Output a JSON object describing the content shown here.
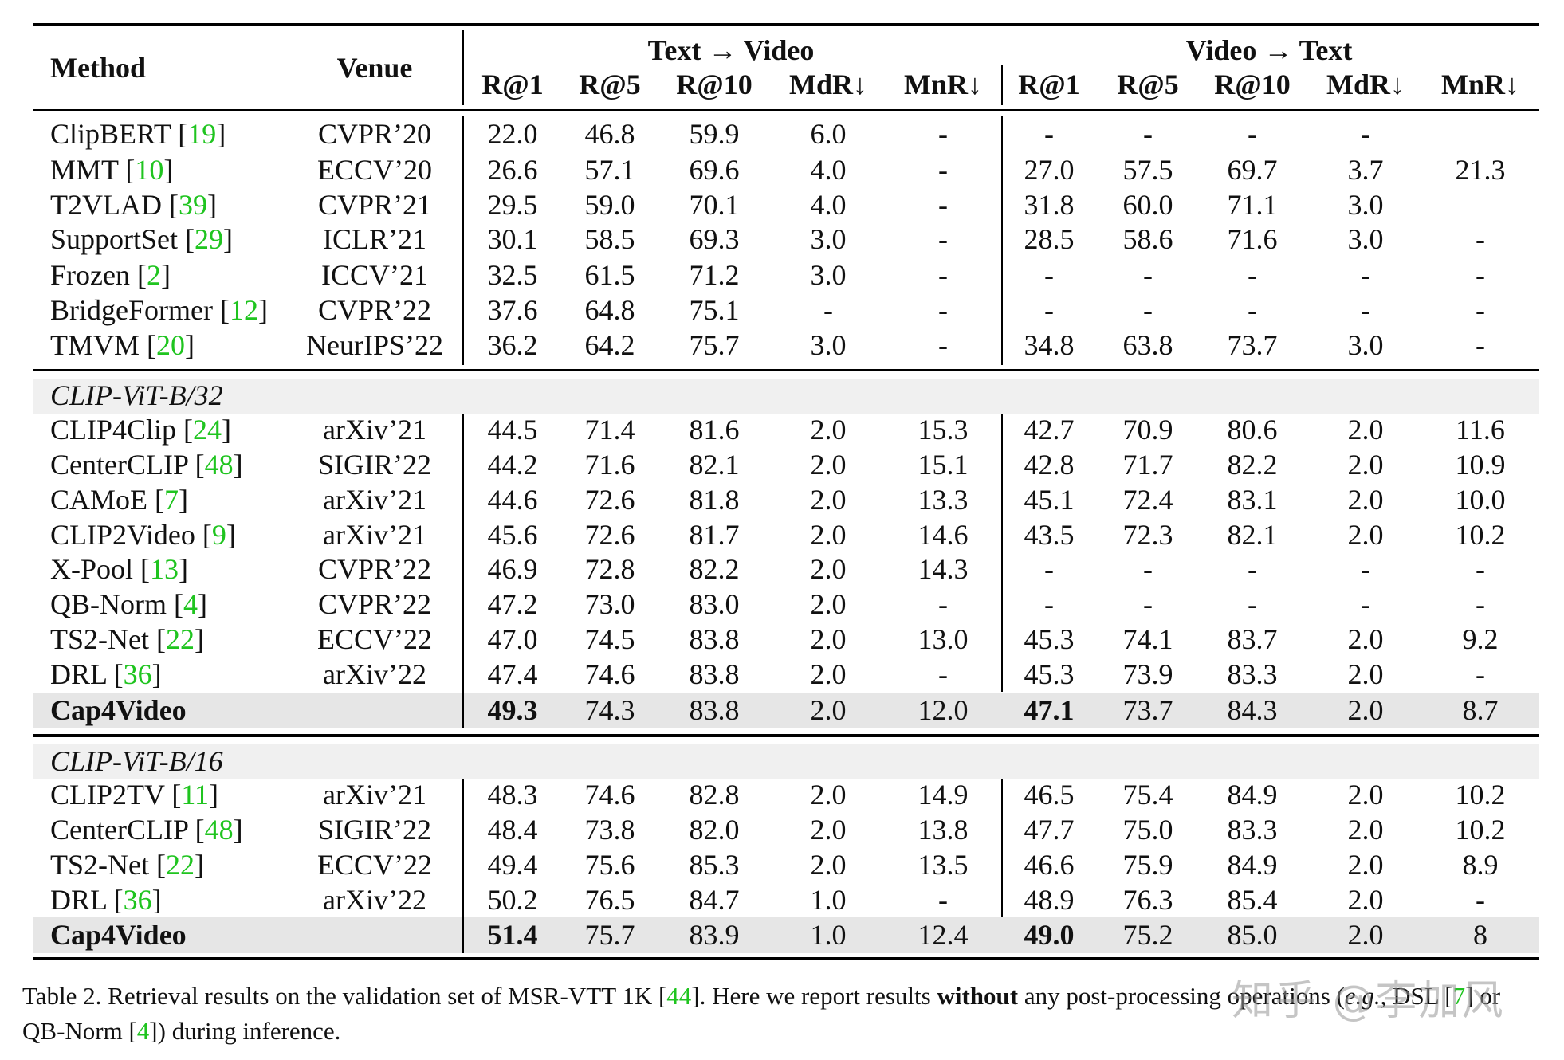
{
  "table": {
    "header": {
      "method": "Method",
      "venue": "Venue",
      "group_t2v": "Text → Video",
      "group_v2t": "Video → Text",
      "metrics": [
        "R@1",
        "R@5",
        "R@10",
        "MdR↓",
        "MnR↓"
      ]
    },
    "sections": [
      {
        "title": "",
        "rows": [
          {
            "method": "ClipBERT",
            "ref": "19",
            "venue": "CVPR’20",
            "t2v": [
              "22.0",
              "46.8",
              "59.9",
              "6.0",
              "-"
            ],
            "v2t": [
              "-",
              "-",
              "-",
              "-",
              ""
            ]
          },
          {
            "method": "MMT",
            "ref": "10",
            "venue": "ECCV’20",
            "t2v": [
              "26.6",
              "57.1",
              "69.6",
              "4.0",
              "-"
            ],
            "v2t": [
              "27.0",
              "57.5",
              "69.7",
              "3.7",
              "21.3"
            ]
          },
          {
            "method": "T2VLAD",
            "ref": "39",
            "venue": "CVPR’21",
            "t2v": [
              "29.5",
              "59.0",
              "70.1",
              "4.0",
              "-"
            ],
            "v2t": [
              "31.8",
              "60.0",
              "71.1",
              "3.0",
              ""
            ]
          },
          {
            "method": "SupportSet",
            "ref": "29",
            "venue": "ICLR’21",
            "t2v": [
              "30.1",
              "58.5",
              "69.3",
              "3.0",
              "-"
            ],
            "v2t": [
              "28.5",
              "58.6",
              "71.6",
              "3.0",
              "-"
            ]
          },
          {
            "method": "Frozen",
            "ref": "2",
            "venue": "ICCV’21",
            "t2v": [
              "32.5",
              "61.5",
              "71.2",
              "3.0",
              "-"
            ],
            "v2t": [
              "-",
              "-",
              "-",
              "-",
              "-"
            ]
          },
          {
            "method": "BridgeFormer",
            "ref": "12",
            "venue": "CVPR’22",
            "t2v": [
              "37.6",
              "64.8",
              "75.1",
              "-",
              "-"
            ],
            "v2t": [
              "-",
              "-",
              "-",
              "-",
              "-"
            ]
          },
          {
            "method": "TMVM",
            "ref": "20",
            "venue": "NeurIPS’22",
            "t2v": [
              "36.2",
              "64.2",
              "75.7",
              "3.0",
              "-"
            ],
            "v2t": [
              "34.8",
              "63.8",
              "73.7",
              "3.0",
              "-"
            ]
          }
        ]
      },
      {
        "title": "CLIP-ViT-B/32",
        "rows": [
          {
            "method": "CLIP4Clip",
            "ref": "24",
            "venue": "arXiv’21",
            "t2v": [
              "44.5",
              "71.4",
              "81.6",
              "2.0",
              "15.3"
            ],
            "v2t": [
              "42.7",
              "70.9",
              "80.6",
              "2.0",
              "11.6"
            ]
          },
          {
            "method": "CenterCLIP",
            "ref": "48",
            "venue": "SIGIR’22",
            "t2v": [
              "44.2",
              "71.6",
              "82.1",
              "2.0",
              "15.1"
            ],
            "v2t": [
              "42.8",
              "71.7",
              "82.2",
              "2.0",
              "10.9"
            ]
          },
          {
            "method": "CAMoE",
            "ref": "7",
            "venue": "arXiv’21",
            "t2v": [
              "44.6",
              "72.6",
              "81.8",
              "2.0",
              "13.3"
            ],
            "v2t": [
              "45.1",
              "72.4",
              "83.1",
              "2.0",
              "10.0"
            ]
          },
          {
            "method": "CLIP2Video",
            "ref": "9",
            "venue": "arXiv’21",
            "t2v": [
              "45.6",
              "72.6",
              "81.7",
              "2.0",
              "14.6"
            ],
            "v2t": [
              "43.5",
              "72.3",
              "82.1",
              "2.0",
              "10.2"
            ]
          },
          {
            "method": "X-Pool",
            "ref": "13",
            "venue": "CVPR’22",
            "t2v": [
              "46.9",
              "72.8",
              "82.2",
              "2.0",
              "14.3"
            ],
            "v2t": [
              "-",
              "-",
              "-",
              "-",
              "-"
            ]
          },
          {
            "method": "QB-Norm",
            "ref": "4",
            "venue": "CVPR’22",
            "t2v": [
              "47.2",
              "73.0",
              "83.0",
              "2.0",
              "-"
            ],
            "v2t": [
              "-",
              "-",
              "-",
              "-",
              "-"
            ]
          },
          {
            "method": "TS2-Net",
            "ref": "22",
            "venue": "ECCV’22",
            "t2v": [
              "47.0",
              "74.5",
              "83.8",
              "2.0",
              "13.0"
            ],
            "v2t": [
              "45.3",
              "74.1",
              "83.7",
              "2.0",
              "9.2"
            ]
          },
          {
            "method": "DRL",
            "ref": "36",
            "venue": "arXiv’22",
            "t2v": [
              "47.4",
              "74.6",
              "83.8",
              "2.0",
              "-"
            ],
            "v2t": [
              "45.3",
              "73.9",
              "83.3",
              "2.0",
              "-"
            ]
          }
        ],
        "ours": {
          "method": "Cap4Video",
          "venue": "",
          "t2v": [
            "49.3",
            "74.3",
            "83.8",
            "2.0",
            "12.0"
          ],
          "v2t": [
            "47.1",
            "73.7",
            "84.3",
            "2.0",
            "8.7"
          ],
          "bold_t2v": [
            0
          ],
          "bold_v2t": [
            0
          ]
        }
      },
      {
        "title": "CLIP-ViT-B/16",
        "rows": [
          {
            "method": "CLIP2TV",
            "ref": "11",
            "venue": "arXiv’21",
            "t2v": [
              "48.3",
              "74.6",
              "82.8",
              "2.0",
              "14.9"
            ],
            "v2t": [
              "46.5",
              "75.4",
              "84.9",
              "2.0",
              "10.2"
            ]
          },
          {
            "method": "CenterCLIP",
            "ref": "48",
            "venue": "SIGIR’22",
            "t2v": [
              "48.4",
              "73.8",
              "82.0",
              "2.0",
              "13.8"
            ],
            "v2t": [
              "47.7",
              "75.0",
              "83.3",
              "2.0",
              "10.2"
            ]
          },
          {
            "method": "TS2-Net",
            "ref": "22",
            "venue": "ECCV’22",
            "t2v": [
              "49.4",
              "75.6",
              "85.3",
              "2.0",
              "13.5"
            ],
            "v2t": [
              "46.6",
              "75.9",
              "84.9",
              "2.0",
              "8.9"
            ]
          },
          {
            "method": "DRL",
            "ref": "36",
            "venue": "arXiv’22",
            "t2v": [
              "50.2",
              "76.5",
              "84.7",
              "1.0",
              "-"
            ],
            "v2t": [
              "48.9",
              "76.3",
              "85.4",
              "2.0",
              "-"
            ]
          }
        ],
        "ours": {
          "method": "Cap4Video",
          "venue": "",
          "t2v": [
            "51.4",
            "75.7",
            "83.9",
            "1.0",
            "12.4"
          ],
          "v2t": [
            "49.0",
            "75.2",
            "85.0",
            "2.0",
            "8"
          ],
          "bold_t2v": [
            0
          ],
          "bold_v2t": [
            0
          ]
        }
      }
    ]
  },
  "caption": {
    "label": "Table 2.",
    "part1": " Retrieval results on the validation set of MSR-VTT 1K [",
    "ref1": "44",
    "part2": "]. Here we report results ",
    "bold": "without",
    "part3": " any post-processing operations (",
    "eg": "e.g.",
    "part4": ", DSL [",
    "ref2": "7",
    "part5": "] or QB-Norm [",
    "ref3": "4",
    "part6": "]) during inference."
  },
  "watermark": "知乎 @李加风",
  "colors": {
    "ref": "#1fc41f",
    "group_band": "#f0f0f0",
    "ours_band": "#e6e6e6"
  }
}
